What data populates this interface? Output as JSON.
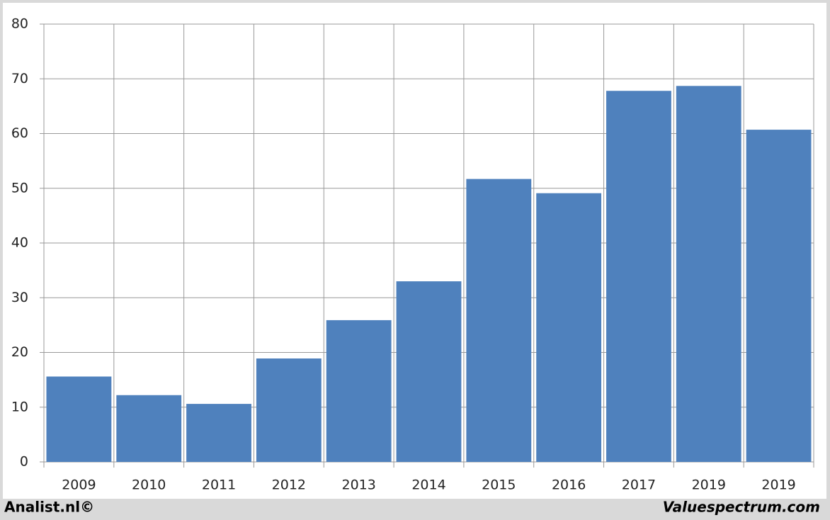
{
  "chart_data": {
    "type": "bar",
    "categories": [
      "2009",
      "2010",
      "2011",
      "2012",
      "2013",
      "2014",
      "2015",
      "2016",
      "2017",
      "2019",
      "2019"
    ],
    "values": [
      15.6,
      12.2,
      10.6,
      18.9,
      25.9,
      33.0,
      51.7,
      49.1,
      67.8,
      68.7,
      60.7
    ],
    "color": "#4f81bd",
    "ylim": [
      0,
      80
    ],
    "yticks": [
      0,
      10,
      20,
      30,
      40,
      50,
      60,
      70,
      80
    ],
    "grid": true
  },
  "footer": {
    "left": "Analist.nl©",
    "right": "Valuespectrum.com"
  }
}
